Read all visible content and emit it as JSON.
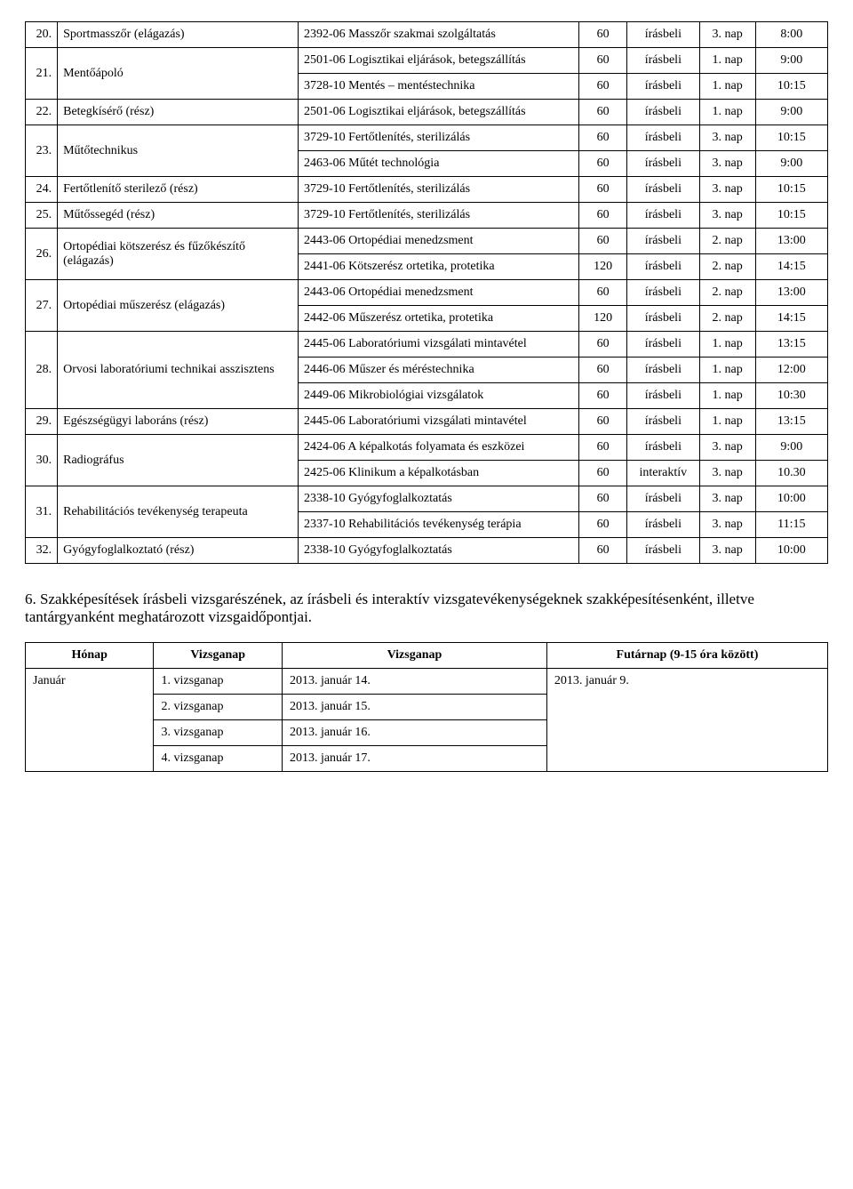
{
  "mainTable": {
    "rows": [
      {
        "num": "20.",
        "rowspan": 1,
        "name": "Sportmasszőr (elágazás)",
        "desc": "2392-06 Masszőr szakmai szolgáltatás",
        "dur": "60",
        "type": "írásbeli",
        "day": "3. nap",
        "time": "8:00"
      },
      {
        "num": "21.",
        "rowspan": 2,
        "name": "Mentőápoló",
        "desc": "2501-06 Logisztikai eljárások, betegszállítás",
        "dur": "60",
        "type": "írásbeli",
        "day": "1. nap",
        "time": "9:00"
      },
      {
        "desc": "3728-10 Mentés – mentéstechnika",
        "dur": "60",
        "type": "írásbeli",
        "day": "1. nap",
        "time": "10:15"
      },
      {
        "num": "22.",
        "rowspan": 1,
        "name": "Betegkísérő (rész)",
        "desc": "2501-06 Logisztikai eljárások, betegszállítás",
        "dur": "60",
        "type": "írásbeli",
        "day": "1. nap",
        "time": "9:00"
      },
      {
        "num": "23.",
        "rowspan": 2,
        "name": "Műtőtechnikus",
        "desc": "3729-10 Fertőtlenítés, sterilizálás",
        "dur": "60",
        "type": "írásbeli",
        "day": "3. nap",
        "time": "10:15"
      },
      {
        "desc": "2463-06 Műtét technológia",
        "dur": "60",
        "type": "írásbeli",
        "day": "3. nap",
        "time": "9:00"
      },
      {
        "num": "24.",
        "rowspan": 1,
        "name": "Fertőtlenítő sterilező (rész)",
        "desc": "3729-10 Fertőtlenítés, sterilizálás",
        "dur": "60",
        "type": "írásbeli",
        "day": "3. nap",
        "time": "10:15"
      },
      {
        "num": "25.",
        "rowspan": 1,
        "name": "Műtőssegéd (rész)",
        "desc": "3729-10 Fertőtlenítés, sterilizálás",
        "dur": "60",
        "type": "írásbeli",
        "day": "3. nap",
        "time": "10:15"
      },
      {
        "num": "26.",
        "rowspan": 2,
        "name": "Ortopédiai kötszerész és fűzőkészítő (elágazás)",
        "desc": "2443-06 Ortopédiai menedzsment",
        "dur": "60",
        "type": "írásbeli",
        "day": "2. nap",
        "time": "13:00"
      },
      {
        "desc": "2441-06 Kötszerész ortetika, protetika",
        "dur": "120",
        "type": "írásbeli",
        "day": "2. nap",
        "time": "14:15"
      },
      {
        "num": "27.",
        "rowspan": 2,
        "name": "Ortopédiai műszerész (elágazás)",
        "desc": "2443-06 Ortopédiai menedzsment",
        "dur": "60",
        "type": "írásbeli",
        "day": "2. nap",
        "time": "13:00"
      },
      {
        "desc": "2442-06 Műszerész ortetika, protetika",
        "dur": "120",
        "type": "írásbeli",
        "day": "2. nap",
        "time": "14:15"
      },
      {
        "num": "28.",
        "rowspan": 3,
        "name": "Orvosi laboratóriumi technikai asszisztens",
        "desc": "2445-06 Laboratóriumi vizsgálati mintavétel",
        "dur": "60",
        "type": "írásbeli",
        "day": "1. nap",
        "time": "13:15"
      },
      {
        "desc": "2446-06 Műszer és méréstechnika",
        "dur": "60",
        "type": "írásbeli",
        "day": "1. nap",
        "time": "12:00"
      },
      {
        "desc": "2449-06 Mikrobiológiai vizsgálatok",
        "dur": "60",
        "type": "írásbeli",
        "day": "1. nap",
        "time": "10:30"
      },
      {
        "num": "29.",
        "rowspan": 1,
        "name": "Egészségügyi laboráns (rész)",
        "desc": "2445-06 Laboratóriumi vizsgálati mintavétel",
        "dur": "60",
        "type": "írásbeli",
        "day": "1. nap",
        "time": "13:15"
      },
      {
        "num": "30.",
        "rowspan": 2,
        "name": "Radiográfus",
        "desc": "2424-06 A képalkotás folyamata és eszközei",
        "dur": "60",
        "type": "írásbeli",
        "day": "3. nap",
        "time": "9:00"
      },
      {
        "desc": "2425-06 Klinikum a képalkotásban",
        "dur": "60",
        "type": "interaktív",
        "day": "3. nap",
        "time": "10.30"
      },
      {
        "num": "31.",
        "rowspan": 2,
        "name": "Rehabilitációs tevékenység terapeuta",
        "desc": "2338-10 Gyógyfoglalkoztatás",
        "dur": "60",
        "type": "írásbeli",
        "day": "3. nap",
        "time": "10:00"
      },
      {
        "desc": "2337-10 Rehabilitációs tevékenység terápia",
        "dur": "60",
        "type": "írásbeli",
        "day": "3. nap",
        "time": "11:15"
      },
      {
        "num": "32.",
        "rowspan": 1,
        "name": "Gyógyfoglalkoztató (rész)",
        "desc": "2338-10 Gyógyfoglalkoztatás",
        "dur": "60",
        "type": "írásbeli",
        "day": "3. nap",
        "time": "10:00"
      }
    ]
  },
  "sectionTitle": "6. Szakképesítések írásbeli vizsgarészének, az írásbeli és interaktív vizsgatevékenységeknek szakképesítésenként, illetve tantárgyanként meghatározott vizsgaidőpontjai.",
  "schedule": {
    "headers": {
      "month": "Hónap",
      "vizsnap": "Vizsganap",
      "vizsganap": "Vizsganap",
      "futar": "Futárnap (9-15 óra között)"
    },
    "month": {
      "name": "Január",
      "rowspan": 4
    },
    "futar": {
      "text": "2013. január 9.",
      "rowspan": 4
    },
    "rows": [
      {
        "vnum": "1. vizsganap",
        "vdate": "2013. január 14."
      },
      {
        "vnum": "2. vizsganap",
        "vdate": "2013. január 15."
      },
      {
        "vnum": "3. vizsganap",
        "vdate": "2013. január 16."
      },
      {
        "vnum": "4. vizsganap",
        "vdate": "2013. január 17."
      }
    ]
  }
}
